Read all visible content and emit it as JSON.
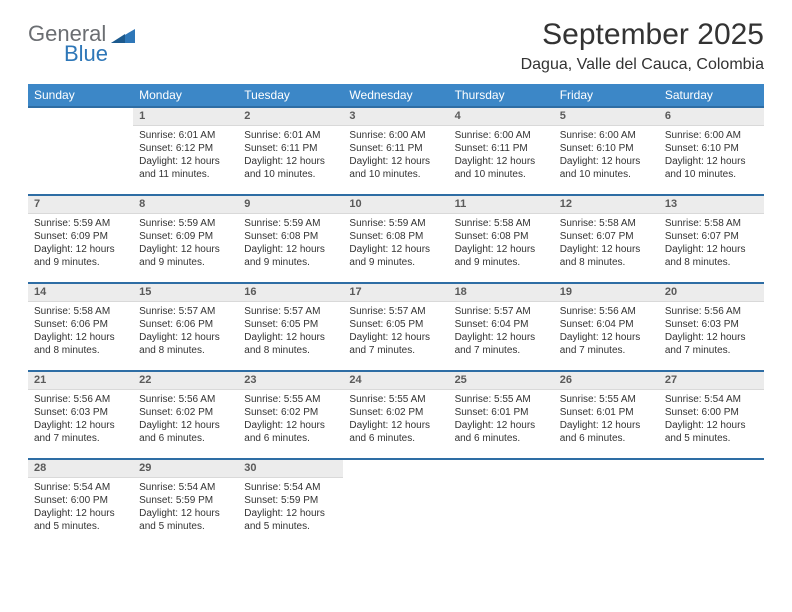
{
  "logo": {
    "word1": "General",
    "word2": "Blue",
    "color1": "#6b6e72",
    "color2": "#2e77b8"
  },
  "title": "September 2025",
  "location": "Dagua, Valle del Cauca, Colombia",
  "header_bg": "#3c87c7",
  "rule_color": "#2e6da4",
  "daynum_bg": "#ececec",
  "weekdays": [
    "Sunday",
    "Monday",
    "Tuesday",
    "Wednesday",
    "Thursday",
    "Friday",
    "Saturday"
  ],
  "weeks": [
    [
      null,
      {
        "n": "1",
        "sr": "Sunrise: 6:01 AM",
        "ss": "Sunset: 6:12 PM",
        "dl": "Daylight: 12 hours and 11 minutes."
      },
      {
        "n": "2",
        "sr": "Sunrise: 6:01 AM",
        "ss": "Sunset: 6:11 PM",
        "dl": "Daylight: 12 hours and 10 minutes."
      },
      {
        "n": "3",
        "sr": "Sunrise: 6:00 AM",
        "ss": "Sunset: 6:11 PM",
        "dl": "Daylight: 12 hours and 10 minutes."
      },
      {
        "n": "4",
        "sr": "Sunrise: 6:00 AM",
        "ss": "Sunset: 6:11 PM",
        "dl": "Daylight: 12 hours and 10 minutes."
      },
      {
        "n": "5",
        "sr": "Sunrise: 6:00 AM",
        "ss": "Sunset: 6:10 PM",
        "dl": "Daylight: 12 hours and 10 minutes."
      },
      {
        "n": "6",
        "sr": "Sunrise: 6:00 AM",
        "ss": "Sunset: 6:10 PM",
        "dl": "Daylight: 12 hours and 10 minutes."
      }
    ],
    [
      {
        "n": "7",
        "sr": "Sunrise: 5:59 AM",
        "ss": "Sunset: 6:09 PM",
        "dl": "Daylight: 12 hours and 9 minutes."
      },
      {
        "n": "8",
        "sr": "Sunrise: 5:59 AM",
        "ss": "Sunset: 6:09 PM",
        "dl": "Daylight: 12 hours and 9 minutes."
      },
      {
        "n": "9",
        "sr": "Sunrise: 5:59 AM",
        "ss": "Sunset: 6:08 PM",
        "dl": "Daylight: 12 hours and 9 minutes."
      },
      {
        "n": "10",
        "sr": "Sunrise: 5:59 AM",
        "ss": "Sunset: 6:08 PM",
        "dl": "Daylight: 12 hours and 9 minutes."
      },
      {
        "n": "11",
        "sr": "Sunrise: 5:58 AM",
        "ss": "Sunset: 6:08 PM",
        "dl": "Daylight: 12 hours and 9 minutes."
      },
      {
        "n": "12",
        "sr": "Sunrise: 5:58 AM",
        "ss": "Sunset: 6:07 PM",
        "dl": "Daylight: 12 hours and 8 minutes."
      },
      {
        "n": "13",
        "sr": "Sunrise: 5:58 AM",
        "ss": "Sunset: 6:07 PM",
        "dl": "Daylight: 12 hours and 8 minutes."
      }
    ],
    [
      {
        "n": "14",
        "sr": "Sunrise: 5:58 AM",
        "ss": "Sunset: 6:06 PM",
        "dl": "Daylight: 12 hours and 8 minutes."
      },
      {
        "n": "15",
        "sr": "Sunrise: 5:57 AM",
        "ss": "Sunset: 6:06 PM",
        "dl": "Daylight: 12 hours and 8 minutes."
      },
      {
        "n": "16",
        "sr": "Sunrise: 5:57 AM",
        "ss": "Sunset: 6:05 PM",
        "dl": "Daylight: 12 hours and 8 minutes."
      },
      {
        "n": "17",
        "sr": "Sunrise: 5:57 AM",
        "ss": "Sunset: 6:05 PM",
        "dl": "Daylight: 12 hours and 7 minutes."
      },
      {
        "n": "18",
        "sr": "Sunrise: 5:57 AM",
        "ss": "Sunset: 6:04 PM",
        "dl": "Daylight: 12 hours and 7 minutes."
      },
      {
        "n": "19",
        "sr": "Sunrise: 5:56 AM",
        "ss": "Sunset: 6:04 PM",
        "dl": "Daylight: 12 hours and 7 minutes."
      },
      {
        "n": "20",
        "sr": "Sunrise: 5:56 AM",
        "ss": "Sunset: 6:03 PM",
        "dl": "Daylight: 12 hours and 7 minutes."
      }
    ],
    [
      {
        "n": "21",
        "sr": "Sunrise: 5:56 AM",
        "ss": "Sunset: 6:03 PM",
        "dl": "Daylight: 12 hours and 7 minutes."
      },
      {
        "n": "22",
        "sr": "Sunrise: 5:56 AM",
        "ss": "Sunset: 6:02 PM",
        "dl": "Daylight: 12 hours and 6 minutes."
      },
      {
        "n": "23",
        "sr": "Sunrise: 5:55 AM",
        "ss": "Sunset: 6:02 PM",
        "dl": "Daylight: 12 hours and 6 minutes."
      },
      {
        "n": "24",
        "sr": "Sunrise: 5:55 AM",
        "ss": "Sunset: 6:02 PM",
        "dl": "Daylight: 12 hours and 6 minutes."
      },
      {
        "n": "25",
        "sr": "Sunrise: 5:55 AM",
        "ss": "Sunset: 6:01 PM",
        "dl": "Daylight: 12 hours and 6 minutes."
      },
      {
        "n": "26",
        "sr": "Sunrise: 5:55 AM",
        "ss": "Sunset: 6:01 PM",
        "dl": "Daylight: 12 hours and 6 minutes."
      },
      {
        "n": "27",
        "sr": "Sunrise: 5:54 AM",
        "ss": "Sunset: 6:00 PM",
        "dl": "Daylight: 12 hours and 5 minutes."
      }
    ],
    [
      {
        "n": "28",
        "sr": "Sunrise: 5:54 AM",
        "ss": "Sunset: 6:00 PM",
        "dl": "Daylight: 12 hours and 5 minutes."
      },
      {
        "n": "29",
        "sr": "Sunrise: 5:54 AM",
        "ss": "Sunset: 5:59 PM",
        "dl": "Daylight: 12 hours and 5 minutes."
      },
      {
        "n": "30",
        "sr": "Sunrise: 5:54 AM",
        "ss": "Sunset: 5:59 PM",
        "dl": "Daylight: 12 hours and 5 minutes."
      },
      null,
      null,
      null,
      null
    ]
  ]
}
